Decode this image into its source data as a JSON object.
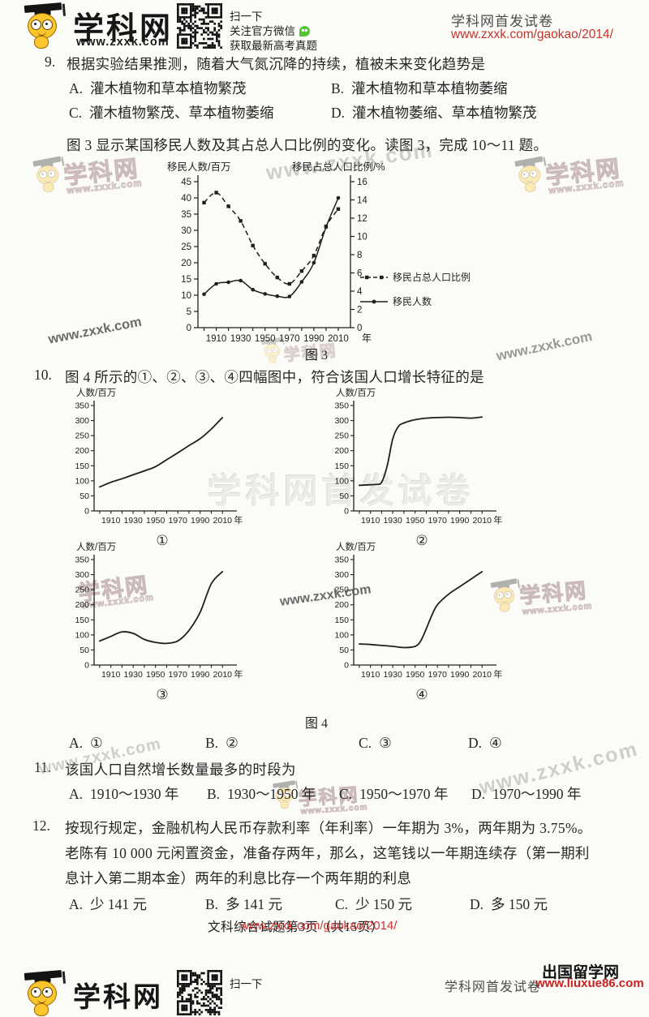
{
  "header": {
    "brand": "学科网",
    "brand_url": "www.zxxk.com",
    "qr_line1": "扫一下",
    "qr_line2": "关注官方微信",
    "qr_line3": "获取最新高考真题",
    "right_title": "学科网首发试卷",
    "right_url": "www.zxxk.com/gaokao/2014/"
  },
  "watermarks": {
    "brand": "学科网",
    "url": "www.zxxk.com",
    "banner": "学科网首发试卷"
  },
  "questions": {
    "q9": {
      "number": "9.",
      "stem": "根据实验结果推测，随着大气氮沉降的持续，植被未来变化趋势是",
      "options": [
        {
          "label": "A.",
          "text": "灌木植物和草本植物繁茂"
        },
        {
          "label": "B.",
          "text": "灌木植物和草本植物萎缩"
        },
        {
          "label": "C.",
          "text": "灌木植物繁茂、草本植物萎缩"
        },
        {
          "label": "D.",
          "text": "灌木植物萎缩、草本植物繁茂"
        }
      ]
    },
    "fig3_intro": "图 3 显示某国移民人数及其占总人口比例的变化。读图 3，完成 10～11 题。",
    "q10": {
      "number": "10.",
      "stem": "图 4 所示的①、②、③、④四幅图中，符合该国人口增长特征的是",
      "options": [
        {
          "label": "A.",
          "text": "①"
        },
        {
          "label": "B.",
          "text": "②"
        },
        {
          "label": "C.",
          "text": "③"
        },
        {
          "label": "D.",
          "text": "④"
        }
      ]
    },
    "q11": {
      "number": "11.",
      "stem": "该国人口自然增长数量最多的时段为",
      "options": [
        {
          "label": "A.",
          "text": "1910～1930 年"
        },
        {
          "label": "B.",
          "text": "1930～1950 年"
        },
        {
          "label": "C.",
          "text": "1950～1970 年"
        },
        {
          "label": "D.",
          "text": "1970～1990 年"
        }
      ]
    },
    "q12": {
      "number": "12.",
      "line1": "按现行规定，金融机构人民币存款利率（年利率）一年期为 3%，两年期为 3.75%。",
      "line2": "老陈有 10 000 元闲置资金，准备存两年，那么，这笔钱以一年期连续存（第一期利",
      "line3": "息计入第二期本金）两年的利息比存一个两年期的利息",
      "options": [
        {
          "label": "A.",
          "text": "少 141 元"
        },
        {
          "label": "B.",
          "text": "多 141 元"
        },
        {
          "label": "C.",
          "text": "少 150 元"
        },
        {
          "label": "D.",
          "text": "多 150 元"
        }
      ]
    }
  },
  "figures": {
    "fig3_caption": "图 3",
    "fig4_caption": "图 4"
  },
  "footer": {
    "page_info": "文科综合试题第3页（共15页）",
    "overlay_url": "www.zxxk.com/gaokao/2014/",
    "liuxue_name": "出国留学网",
    "liuxue_url": "www.liuxue86.com"
  },
  "chart_data": [
    {
      "id": "fig3",
      "type": "line",
      "variant": "dual-axis",
      "x": [
        1900,
        1910,
        1920,
        1930,
        1940,
        1950,
        1960,
        1970,
        1980,
        1990,
        2000,
        2010
      ],
      "x_tick_step": 10,
      "x_labels": [
        1910,
        1930,
        1950,
        1970,
        1990,
        2010
      ],
      "x_unit": "年",
      "left_axis": {
        "label": "移民人数/百万",
        "min": 0,
        "max": 45,
        "step": 5
      },
      "right_axis": {
        "label": "移民占总人口比例/%",
        "min": 0,
        "max": 16,
        "step": 2
      },
      "series": [
        {
          "name": "移民占总人口比例",
          "axis": "right",
          "line": "dashed",
          "marker": "square",
          "values": [
            13.7,
            14.8,
            13.3,
            11.7,
            9.0,
            7.0,
            5.5,
            4.8,
            6.2,
            7.9,
            11.1,
            13.0
          ]
        },
        {
          "name": "移民人数",
          "axis": "left",
          "line": "solid",
          "marker": "circle",
          "values": [
            10.3,
            13.5,
            14.0,
            14.5,
            11.7,
            10.4,
            9.7,
            9.6,
            14.1,
            20.0,
            31.0,
            40.0
          ]
        }
      ],
      "legend_position": "right",
      "caption": "图 3"
    },
    {
      "id": "sub1",
      "label": "①",
      "type": "line",
      "y_axis": {
        "label": "人数/百万",
        "min": 0,
        "max": 350,
        "step": 50
      },
      "x_labels": [
        1910,
        1930,
        1950,
        1970,
        1990,
        2010
      ],
      "x_unit": "年",
      "x": [
        1900,
        1910,
        1920,
        1930,
        1940,
        1950,
        1960,
        1970,
        1980,
        1990,
        2000,
        2010
      ],
      "values": [
        80,
        95,
        107,
        120,
        133,
        147,
        170,
        193,
        217,
        240,
        272,
        310
      ]
    },
    {
      "id": "sub2",
      "label": "②",
      "type": "line",
      "y_axis": {
        "label": "人数/百万",
        "min": 0,
        "max": 350,
        "step": 50
      },
      "x_labels": [
        1910,
        1930,
        1950,
        1970,
        1990,
        2010
      ],
      "x_unit": "年",
      "x": [
        1900,
        1910,
        1915,
        1920,
        1925,
        1930,
        1935,
        1940,
        1950,
        1960,
        1970,
        1980,
        1990,
        2000,
        2010
      ],
      "values": [
        85,
        87,
        88,
        95,
        150,
        240,
        280,
        292,
        303,
        308,
        310,
        311,
        310,
        308,
        312
      ]
    },
    {
      "id": "sub3",
      "label": "③",
      "type": "line",
      "y_axis": {
        "label": "人数/百万",
        "min": 0,
        "max": 350,
        "step": 50
      },
      "x_labels": [
        1910,
        1930,
        1950,
        1970,
        1990,
        2010
      ],
      "x_unit": "年",
      "x": [
        1900,
        1910,
        1920,
        1930,
        1940,
        1950,
        1960,
        1970,
        1980,
        1990,
        2000,
        2010
      ],
      "values": [
        80,
        95,
        110,
        105,
        85,
        75,
        72,
        80,
        115,
        175,
        270,
        310
      ]
    },
    {
      "id": "sub4",
      "label": "④",
      "type": "line",
      "y_axis": {
        "label": "人数/百万",
        "min": 0,
        "max": 350,
        "step": 50
      },
      "x_labels": [
        1910,
        1930,
        1950,
        1970,
        1990,
        2010
      ],
      "x_unit": "年",
      "x": [
        1900,
        1910,
        1920,
        1930,
        1940,
        1950,
        1955,
        1960,
        1965,
        1970,
        1980,
        1990,
        2000,
        2010
      ],
      "values": [
        70,
        68,
        65,
        62,
        58,
        62,
        80,
        120,
        165,
        200,
        235,
        260,
        285,
        310
      ]
    }
  ]
}
